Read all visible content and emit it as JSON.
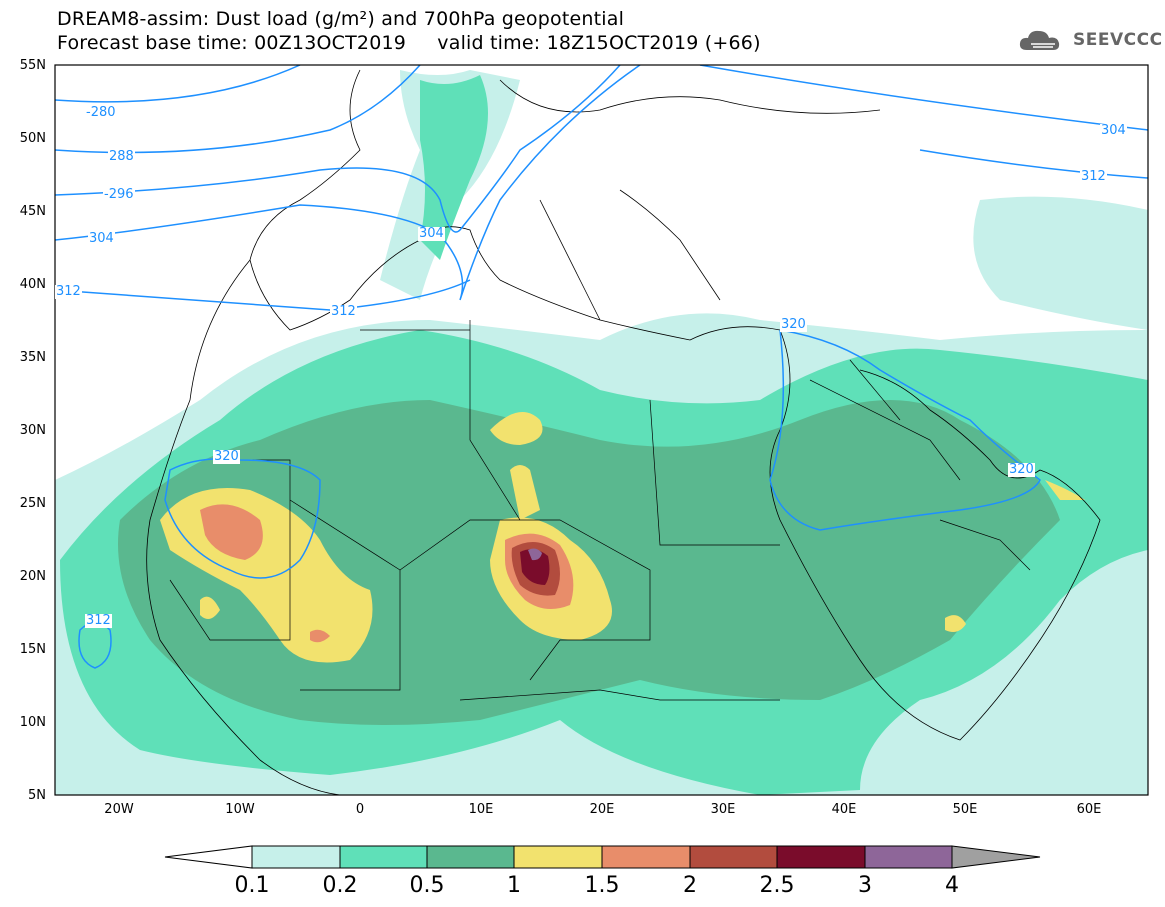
{
  "header": {
    "line1": "DREAM8-assim: Dust load (g/m²) and 700hPa geopotential",
    "line2": "Forecast base time: 00Z13OCT2019     valid time: 18Z15OCT2019 (+66)"
  },
  "logo": {
    "text": "SEEVCCC",
    "icon": "cloud-icon"
  },
  "map": {
    "lat_labels": [
      "55N",
      "50N",
      "45N",
      "40N",
      "35N",
      "30N",
      "25N",
      "20N",
      "15N",
      "10N",
      "5N"
    ],
    "lon_labels": [
      "20W",
      "10W",
      "0",
      "10E",
      "20E",
      "30E",
      "40E",
      "50E",
      "60E"
    ],
    "contour_labels": [
      "-280",
      "288",
      "-296",
      "304",
      "304",
      "312",
      "312",
      "312",
      "304",
      "320",
      "320",
      "320",
      "312"
    ],
    "colors": {
      "ocean": "#ffffff",
      "land_border": "#000000",
      "contour": "#1e90ff",
      "level_01": "#c6f0ea",
      "level_02": "#5fe0b8",
      "level_05": "#5ab88f",
      "level_1": "#f2e26e",
      "level_15": "#e88d6a",
      "level_2": "#b24c3e",
      "level_25": "#7a0c2b",
      "level_3": "#8e6699",
      "level_4": "#a0a0a0"
    }
  },
  "colorbar": {
    "labels": [
      "0.1",
      "0.2",
      "0.5",
      "1",
      "1.5",
      "2",
      "2.5",
      "3",
      "4"
    ]
  }
}
